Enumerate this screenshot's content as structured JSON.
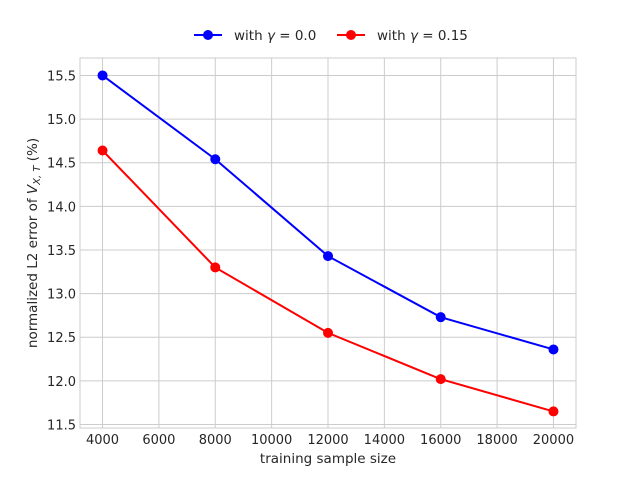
{
  "chart_data": {
    "type": "line",
    "title": "",
    "xlabel": "training sample size",
    "ylabel_prefix": "normalized L2 error of ",
    "ylabel_var": "V",
    "ylabel_sub": "X, T",
    "ylabel_suffix": " (%)",
    "x": [
      4000,
      8000,
      12000,
      16000,
      20000
    ],
    "xlim": [
      3200,
      20800
    ],
    "ylim": [
      11.46,
      15.7
    ],
    "xticks": [
      4000,
      6000,
      8000,
      10000,
      12000,
      14000,
      16000,
      18000,
      20000
    ],
    "yticks": [
      11.5,
      12.0,
      12.5,
      13.0,
      13.5,
      14.0,
      14.5,
      15.0,
      15.5
    ],
    "grid": true,
    "legend_position": "top-center",
    "series": [
      {
        "name": "with γ = 0.0",
        "legend_prefix": "with ",
        "legend_var": "γ",
        "legend_suffix": " = 0.0",
        "color": "#0000ff",
        "values": [
          15.5,
          14.54,
          13.43,
          12.73,
          12.36
        ]
      },
      {
        "name": "with γ = 0.15",
        "legend_prefix": "with ",
        "legend_var": "γ",
        "legend_suffix": " = 0.15",
        "color": "#ff0000",
        "values": [
          14.64,
          13.3,
          12.55,
          12.02,
          11.65
        ]
      }
    ]
  }
}
